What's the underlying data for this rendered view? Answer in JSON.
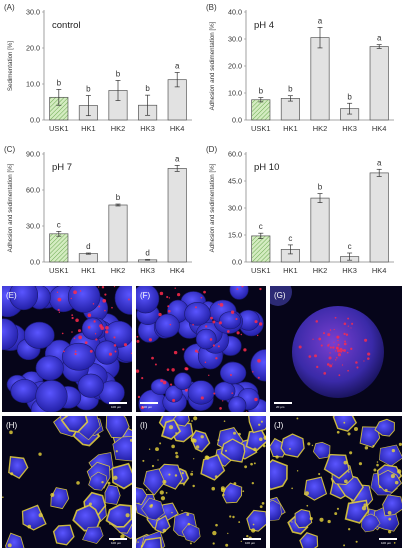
{
  "chart_data": [
    {
      "type": "bar",
      "panel_label": "(A)",
      "inset_title": "control",
      "ylabel": "Sedimentation [%]",
      "ylim": [
        0,
        30
      ],
      "yticks": [
        "0.0",
        "10.0",
        "20.0",
        "30.0"
      ],
      "categories": [
        "USK1",
        "HK1",
        "HK2",
        "HK3",
        "HK4"
      ],
      "values": [
        6.3,
        4.0,
        8.2,
        4.1,
        11.2
      ],
      "errors": [
        2.2,
        2.8,
        2.8,
        2.8,
        2.0
      ],
      "letters": [
        "b",
        "b",
        "b",
        "b",
        "a"
      ]
    },
    {
      "type": "bar",
      "panel_label": "(B)",
      "inset_title": "pH 4",
      "ylabel": "Adhesion and sedimentation [%]",
      "ylim": [
        0,
        40
      ],
      "yticks": [
        "0.0",
        "10.0",
        "20.0",
        "30.0",
        "40.0"
      ],
      "categories": [
        "USK1",
        "HK1",
        "HK2",
        "HK3",
        "HK4"
      ],
      "values": [
        7.5,
        8.0,
        30.5,
        4.2,
        27.2
      ],
      "errors": [
        0.8,
        1.0,
        3.8,
        2.0,
        0.7
      ],
      "letters": [
        "b",
        "b",
        "a",
        "b",
        "a"
      ]
    },
    {
      "type": "bar",
      "panel_label": "(C)",
      "inset_title": "pH 7",
      "ylabel": "Adhesion and sedimentation [%]",
      "ylim": [
        0,
        90
      ],
      "yticks": [
        "0.0",
        "30.0",
        "60.0",
        "90.0"
      ],
      "categories": [
        "USK1",
        "HK1",
        "HK2",
        "HK3",
        "HK4"
      ],
      "values": [
        23.5,
        7.0,
        47.5,
        1.8,
        78.0
      ],
      "errors": [
        2.0,
        0.5,
        0.8,
        0.3,
        2.5
      ],
      "letters": [
        "c",
        "d",
        "b",
        "d",
        "a"
      ]
    },
    {
      "type": "bar",
      "panel_label": "(D)",
      "inset_title": "pH 10",
      "ylabel": "Adhesion and sedimentation [%]",
      "ylim": [
        0,
        60
      ],
      "yticks": [
        "0.0",
        "15.0",
        "30.0",
        "45.0",
        "60.0"
      ],
      "categories": [
        "USK1",
        "HK1",
        "HK2",
        "HK3",
        "HK4"
      ],
      "values": [
        14.5,
        7.0,
        35.5,
        3.0,
        49.5
      ],
      "errors": [
        1.5,
        2.5,
        2.5,
        2.0,
        2.0
      ],
      "letters": [
        "c",
        "c",
        "b",
        "c",
        "a"
      ]
    }
  ],
  "micrographs": [
    {
      "label": "(E)",
      "scale": "100 µm"
    },
    {
      "label": "(F)",
      "scale": "100 µm"
    },
    {
      "label": "(G)",
      "scale": "20 µm"
    },
    {
      "label": "(H)",
      "scale": "100 µm"
    },
    {
      "label": "(I)",
      "scale": "100 µm"
    },
    {
      "label": "(J)",
      "scale": "100 µm"
    }
  ],
  "colors": {
    "bar_usk1": "#d4ecc1",
    "bar_usk1_hatch": "#6aa84f",
    "bar_hk": "#e2e2e2",
    "bar_stroke": "#555555",
    "micro_bg": "#06051a",
    "cell_blue": "#3a36d6",
    "stain_red": "#ff2a4a",
    "stain_yellow": "#e8d43a"
  }
}
